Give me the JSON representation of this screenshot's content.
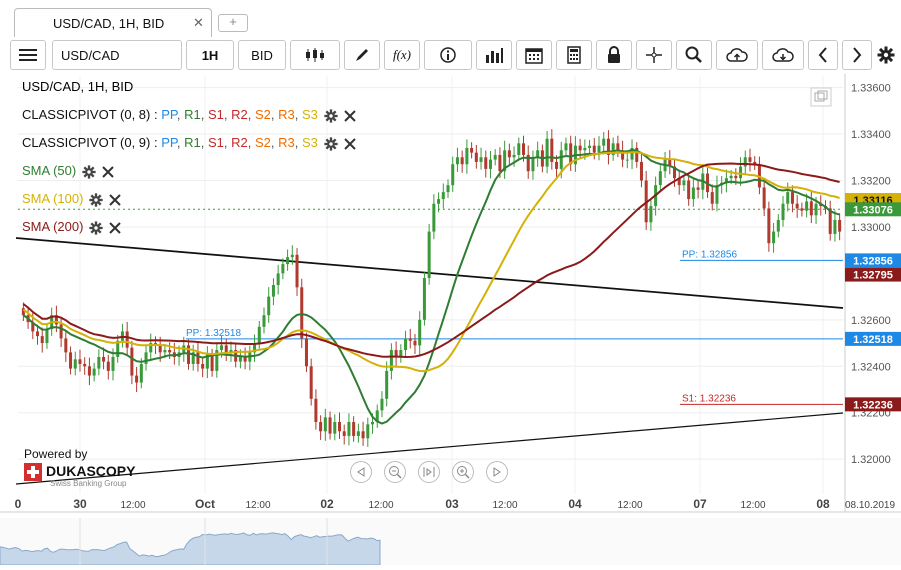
{
  "tab": {
    "title": "USD/CAD, 1H, BID",
    "close_glyph": "✕",
    "add_glyph": "+"
  },
  "toolbar": {
    "instrument": "USD/CAD",
    "period": "1H",
    "side": "BID",
    "fx_label": "f(x)"
  },
  "legend": {
    "title": "USD/CAD, 1H, BID",
    "pivots": [
      {
        "name": "CLASSICPIVOT (0, 8)",
        "levels": [
          "PP",
          "R1",
          "S1",
          "R2",
          "S2",
          "R3",
          "S3"
        ]
      },
      {
        "name": "CLASSICPIVOT (0, 9)",
        "levels": [
          "PP",
          "R1",
          "S1",
          "R2",
          "S2",
          "R3",
          "S3"
        ]
      }
    ],
    "level_colors": {
      "PP": "#1e88e5",
      "R1": "#2e7d32",
      "S1": "#c62828",
      "R2": "#c62828",
      "S2": "#ef6c00",
      "R3": "#ef6c00",
      "S3": "#d4b106"
    },
    "smas": [
      {
        "label": "SMA (50)",
        "color": "#2e7d32"
      },
      {
        "label": "SMA (100)",
        "color": "#d4b106"
      },
      {
        "label": "SMA (200)",
        "color": "#8b1a1a"
      }
    ]
  },
  "branding": {
    "powered_by": "Powered by",
    "logo_text": "DUKASCOPY",
    "logo_sub": "Swiss Banking Group"
  },
  "chart_data": {
    "type": "candlestick",
    "title": "USD/CAD, 1H, BID",
    "ylim": [
      1.3185,
      1.3365
    ],
    "y_ticks": [
      "1.33600",
      "1.33400",
      "1.33200",
      "1.33000",
      "1.32600",
      "1.32400",
      "1.32200",
      "1.32000"
    ],
    "x_ticks": [
      "0",
      "30",
      "12:00",
      "Oct",
      "12:00",
      "02",
      "12:00",
      "03",
      "12:00",
      "04",
      "12:00",
      "07",
      "12:00",
      "08",
      "08.10.2019"
    ],
    "price_markers": [
      {
        "label": "1.33116",
        "value": 1.33116,
        "bg": "#d4b106",
        "fg": "#111"
      },
      {
        "label": "1.33076",
        "value": 1.33076,
        "bg": "#3a9a3a",
        "fg": "#fff"
      },
      {
        "label": "1.32856",
        "value": 1.32856,
        "bg": "#1e88e5",
        "fg": "#fff"
      },
      {
        "label": "1.32795",
        "value": 1.32795,
        "bg": "#8b1a1a",
        "fg": "#fff"
      },
      {
        "label": "1.32518",
        "value": 1.32518,
        "bg": "#1e88e5",
        "fg": "#fff"
      },
      {
        "label": "1.32236",
        "value": 1.32236,
        "bg": "#8b1a1a",
        "fg": "#fff"
      }
    ],
    "pivot_labels": [
      {
        "text": "PP: 1.32856",
        "value": 1.32856,
        "color": "#1e88e5"
      },
      {
        "text": "PP: 1.32518",
        "value": 1.32518,
        "color": "#1e88e5"
      },
      {
        "text": "S1: 1.32236",
        "value": 1.32236,
        "color": "#c62828"
      }
    ],
    "close_series": [
      1.3262,
      1.3259,
      1.3255,
      1.3253,
      1.325,
      1.3256,
      1.3262,
      1.3258,
      1.3252,
      1.3246,
      1.3239,
      1.3243,
      1.3241,
      1.324,
      1.3236,
      1.3239,
      1.3244,
      1.3242,
      1.3238,
      1.3244,
      1.3251,
      1.3255,
      1.3248,
      1.3236,
      1.3233,
      1.3241,
      1.3246,
      1.325,
      1.3249,
      1.3246,
      1.3247,
      1.3246,
      1.3244,
      1.3246,
      1.3249,
      1.3241,
      1.3246,
      1.3241,
      1.3239,
      1.3245,
      1.3238,
      1.3247,
      1.3249,
      1.3246,
      1.3247,
      1.3242,
      1.3244,
      1.3242,
      1.3246,
      1.325,
      1.3257,
      1.3262,
      1.327,
      1.3275,
      1.328,
      1.3284,
      1.3287,
      1.3288,
      1.3274,
      1.3252,
      1.324,
      1.3226,
      1.3216,
      1.3212,
      1.3218,
      1.3211,
      1.3216,
      1.3212,
      1.321,
      1.3216,
      1.321,
      1.3212,
      1.3209,
      1.3215,
      1.3216,
      1.3221,
      1.3226,
      1.3238,
      1.3247,
      1.3244,
      1.3247,
      1.3252,
      1.3251,
      1.3249,
      1.326,
      1.3278,
      1.3298,
      1.331,
      1.3312,
      1.3315,
      1.3318,
      1.3327,
      1.333,
      1.3327,
      1.3334,
      1.3332,
      1.3328,
      1.333,
      1.3325,
      1.3329,
      1.3331,
      1.3324,
      1.3333,
      1.333,
      1.3331,
      1.3336,
      1.3331,
      1.3324,
      1.333,
      1.3333,
      1.3326,
      1.3338,
      1.3328,
      1.3325,
      1.3333,
      1.3336,
      1.3327,
      1.3335,
      1.3333,
      1.3334,
      1.3335,
      1.3332,
      1.3335,
      1.3338,
      1.3331,
      1.3336,
      1.3333,
      1.3329,
      1.3329,
      1.3334,
      1.3328,
      1.332,
      1.3302,
      1.3309,
      1.3318,
      1.3324,
      1.3329,
      1.3326,
      1.3321,
      1.3318,
      1.332,
      1.3312,
      1.3317,
      1.3316,
      1.3323,
      1.3315,
      1.331,
      1.3318,
      1.3319,
      1.3321,
      1.3322,
      1.3321,
      1.3326,
      1.333,
      1.3328,
      1.3327,
      1.3317,
      1.3308,
      1.3293,
      1.3298,
      1.3303,
      1.331,
      1.3315,
      1.331,
      1.3308,
      1.3307,
      1.3311,
      1.3305,
      1.331,
      1.3309,
      1.3308,
      1.3297,
      1.3303,
      1.3298
    ]
  }
}
